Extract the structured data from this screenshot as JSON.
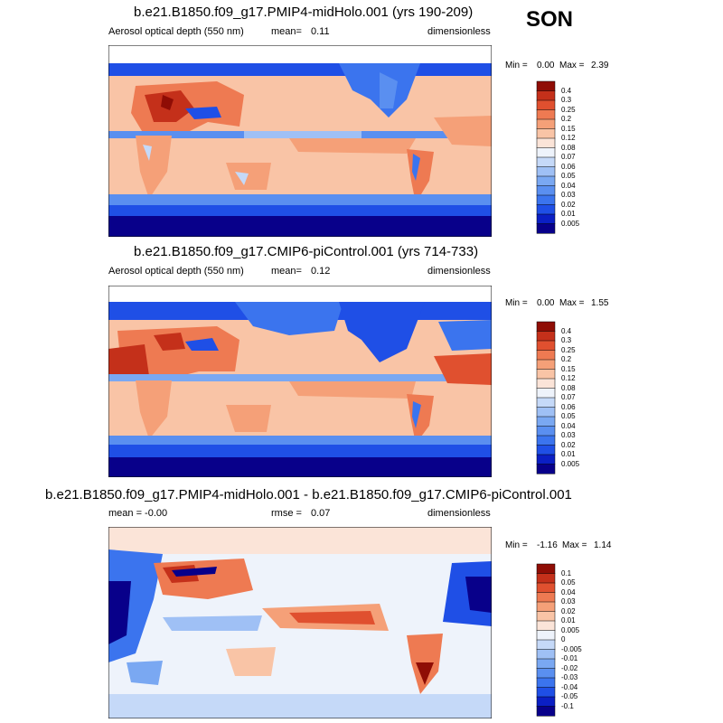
{
  "season": "SON",
  "panels": [
    {
      "title": "b.e21.B1850.f09_g17.PMIP4-midHolo.001 (yrs 190-209)",
      "left_text": "Aerosol optical depth (550 nm)",
      "mean_label": "mean=",
      "mean_value": "0.11",
      "units": "dimensionless",
      "min_label": "Min =",
      "min_value": "0.00",
      "max_label": "Max =",
      "max_value": "2.39"
    },
    {
      "title": "b.e21.B1850.f09_g17.CMIP6-piControl.001 (yrs 714-733)",
      "left_text": "Aerosol optical depth (550 nm)",
      "mean_label": "mean=",
      "mean_value": "0.12",
      "units": "dimensionless",
      "min_label": "Min =",
      "min_value": "0.00",
      "max_label": "Max =",
      "max_value": "1.55"
    },
    {
      "title": "b.e21.B1850.f09_g17.PMIP4-midHolo.001 - b.e21.B1850.f09_g17.CMIP6-piControl.001",
      "left_text": "mean =  -0.00",
      "mean_label": "rmse =",
      "mean_value": "0.07",
      "units": "dimensionless",
      "min_label": "Min =",
      "min_value": "-1.16",
      "max_label": "Max =",
      "max_value": "1.14"
    }
  ],
  "chart_data": [
    {
      "type": "heatmap",
      "variable": "Aerosol optical depth (550 nm)",
      "colorbar_levels": [
        "0.005",
        "0.01",
        "0.02",
        "0.03",
        "0.04",
        "0.05",
        "0.06",
        "0.07",
        "0.08",
        "0.12",
        "0.15",
        "0.2",
        "0.25",
        "0.3",
        "0.4"
      ],
      "colorbar_colors": [
        "#08008a",
        "#0b1fc4",
        "#1f4fe6",
        "#3b74ee",
        "#5a8ff0",
        "#7aa8f2",
        "#9fc0f5",
        "#c5d9f8",
        "#eef3fb",
        "#fbe4d8",
        "#f9c4a6",
        "#f5a078",
        "#ee7a52",
        "#e0502f",
        "#c4301a",
        "#8f0d05"
      ]
    },
    {
      "type": "heatmap",
      "variable": "Aerosol optical depth (550 nm)",
      "colorbar_levels": [
        "0.005",
        "0.01",
        "0.02",
        "0.03",
        "0.04",
        "0.05",
        "0.06",
        "0.07",
        "0.08",
        "0.12",
        "0.15",
        "0.2",
        "0.25",
        "0.3",
        "0.4"
      ],
      "colorbar_colors": [
        "#08008a",
        "#0b1fc4",
        "#1f4fe6",
        "#3b74ee",
        "#5a8ff0",
        "#7aa8f2",
        "#9fc0f5",
        "#c5d9f8",
        "#eef3fb",
        "#fbe4d8",
        "#f9c4a6",
        "#f5a078",
        "#ee7a52",
        "#e0502f",
        "#c4301a",
        "#8f0d05"
      ]
    },
    {
      "type": "heatmap",
      "variable": "difference",
      "colorbar_levels": [
        "-0.1",
        "-0.05",
        "-0.04",
        "-0.03",
        "-0.02",
        "-0.01",
        "-0.005",
        "0",
        "0.005",
        "0.01",
        "0.02",
        "0.03",
        "0.04",
        "0.05",
        "0.1"
      ],
      "colorbar_colors": [
        "#08008a",
        "#0b1fc4",
        "#1f4fe6",
        "#3b74ee",
        "#5a8ff0",
        "#7aa8f2",
        "#9fc0f5",
        "#c5d9f8",
        "#eef3fb",
        "#fbe4d8",
        "#f9c4a6",
        "#f5a078",
        "#ee7a52",
        "#e0502f",
        "#c4301a",
        "#8f0d05"
      ]
    }
  ]
}
